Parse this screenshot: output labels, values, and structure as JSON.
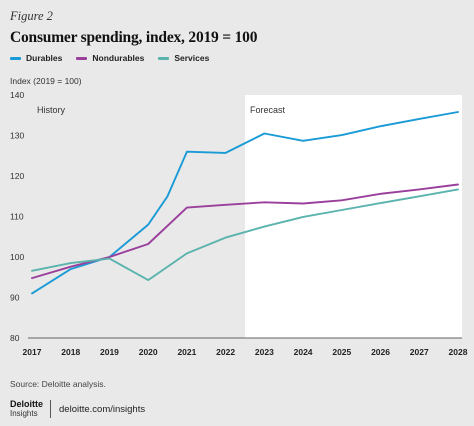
{
  "figure_label": "Figure 2",
  "chart_data": {
    "type": "line",
    "title": "Consumer spending, index, 2019 = 100",
    "ylabel": "Index (2019 = 100)",
    "xlabel": "",
    "x": [
      2017,
      2018,
      2019,
      2020,
      2021,
      2022,
      2023,
      2024,
      2025,
      2026,
      2027,
      2028
    ],
    "x_tick_labels": [
      "2017",
      "2018",
      "2019",
      "2020",
      "2021",
      "2022",
      "2023",
      "2024",
      "2025",
      "2026",
      "2027",
      "2028"
    ],
    "ylim": [
      80,
      140
    ],
    "y_ticks": [
      80,
      90,
      100,
      110,
      120,
      130,
      140
    ],
    "grid": false,
    "legend_position": "top-left",
    "regions": [
      {
        "label": "History",
        "from": 2017,
        "to": 2022.5
      },
      {
        "label": "Forecast",
        "from": 2022.5,
        "to": 2028
      }
    ],
    "series": [
      {
        "name": "Durables",
        "color": "#1a9ad6",
        "points": [
          [
            2017,
            91
          ],
          [
            2018,
            97
          ],
          [
            2019,
            100
          ],
          [
            2020,
            108
          ],
          [
            2020.5,
            115
          ],
          [
            2021,
            126
          ],
          [
            2022,
            125.7
          ],
          [
            2023,
            130.5
          ],
          [
            2024,
            128.7
          ],
          [
            2025,
            130.1
          ],
          [
            2026,
            132.3
          ],
          [
            2027,
            134.1
          ],
          [
            2028,
            135.8
          ]
        ]
      },
      {
        "name": "Nondurables",
        "color": "#9b3f9c",
        "points": [
          [
            2017,
            94.8
          ],
          [
            2018,
            97.6
          ],
          [
            2019,
            100
          ],
          [
            2020,
            103.2
          ],
          [
            2021,
            112.2
          ],
          [
            2022,
            112.9
          ],
          [
            2023,
            113.5
          ],
          [
            2024,
            113.2
          ],
          [
            2025,
            114
          ],
          [
            2026,
            115.6
          ],
          [
            2027,
            116.7
          ],
          [
            2028,
            117.9
          ]
        ]
      },
      {
        "name": "Services",
        "color": "#5ab3ad",
        "points": [
          [
            2017,
            96.6
          ],
          [
            2018,
            98.5
          ],
          [
            2019,
            99.6
          ],
          [
            2020,
            94.3
          ],
          [
            2021,
            100.9
          ],
          [
            2022,
            104.8
          ],
          [
            2023,
            107.5
          ],
          [
            2024,
            109.9
          ],
          [
            2025,
            111.6
          ],
          [
            2026,
            113.3
          ],
          [
            2027,
            115
          ],
          [
            2028,
            116.7
          ]
        ]
      }
    ]
  },
  "source": "Source: Deloitte analysis.",
  "brand": {
    "line1": "Deloitte",
    "line2": "Insights",
    "url": "deloitte.com/insights"
  }
}
